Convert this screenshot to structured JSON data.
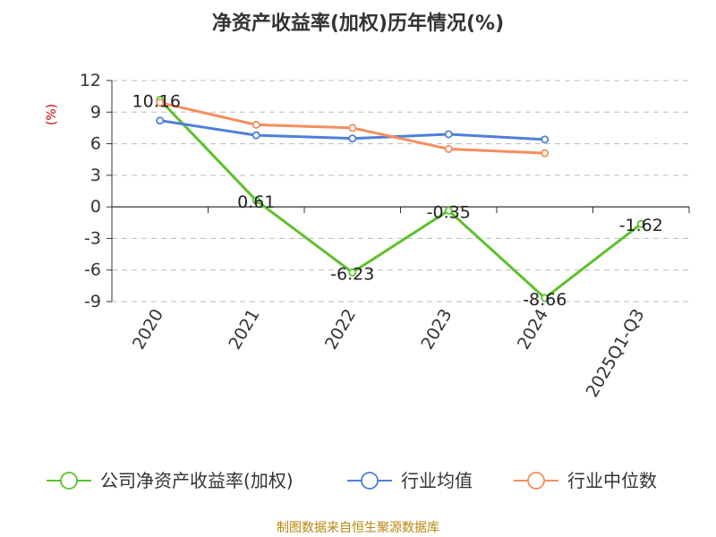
{
  "chart_data": {
    "type": "line",
    "title": "净资产收益率(加权)历年情况(%)",
    "ylabel": "(%)",
    "ylim": [
      -9,
      12
    ],
    "yticks": [
      12,
      9,
      6,
      3,
      0,
      -3,
      -6,
      -9
    ],
    "grid": "horizontal-dashed",
    "legend": "bottom",
    "categories": [
      "2020",
      "2021",
      "2022",
      "2023",
      "2024",
      "2025Q1-Q3"
    ],
    "series": [
      {
        "name": "公司净资产收益率(加权)",
        "color": "#5dc12b",
        "values": [
          10.16,
          0.61,
          -6.23,
          -0.35,
          -8.66,
          -1.62
        ],
        "labels": [
          "10.16",
          "0.61",
          "-6.23",
          "-0.35",
          "-8.66",
          "-1.62"
        ]
      },
      {
        "name": "行业均值",
        "color": "#4f7fdc",
        "values": [
          8.2,
          6.8,
          6.5,
          6.9,
          6.4,
          null
        ]
      },
      {
        "name": "行业中位数",
        "color": "#f58d5d",
        "values": [
          9.9,
          7.8,
          7.5,
          5.5,
          5.1,
          null
        ]
      }
    ],
    "source": "制图数据来自恒生聚源数据库"
  }
}
